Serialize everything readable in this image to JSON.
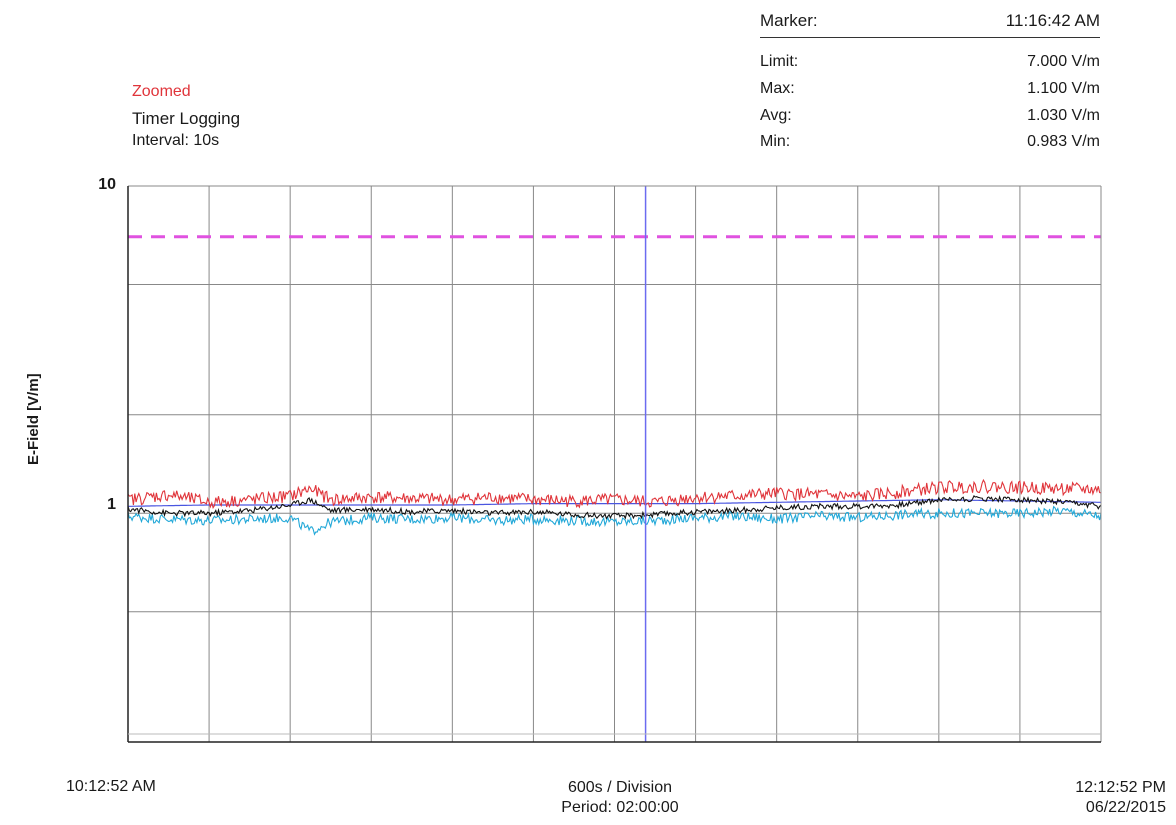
{
  "header": {
    "zoom_label": "Zoomed",
    "mode_label": "Timer Logging",
    "interval_label": "Interval: 10s"
  },
  "stats": {
    "marker_label": "Marker:",
    "marker_value": "11:16:42 AM",
    "rows": [
      {
        "label": "Limit:",
        "value": "7.000 V/m"
      },
      {
        "label": "Max:",
        "value": "1.100 V/m"
      },
      {
        "label": "Avg:",
        "value": "1.030 V/m"
      },
      {
        "label": "Min:",
        "value": "0.983 V/m"
      }
    ]
  },
  "footer": {
    "start_time": "10:12:52 AM",
    "division": "600s / Division",
    "period": "Period: 02:00:00",
    "end_time": "12:12:52 PM",
    "end_date": "06/22/2015"
  },
  "colors": {
    "max": "#e0343a",
    "avg": "#111111",
    "min": "#22a8d8",
    "limit": "#e052e0",
    "marker": "#6b6bf0",
    "grid": "#888888",
    "axis": "#222222",
    "series_blue": "#4a56e0"
  },
  "chart_data": {
    "type": "line",
    "ylabel": "E-Field [V/m]",
    "yscale": "log",
    "ylim": [
      0.2,
      10
    ],
    "ytick_labels": [
      "10",
      "1"
    ],
    "x_start": "10:12:52 AM",
    "x_end": "12:12:52 PM",
    "x_divisions": 12,
    "seconds_per_division": 600,
    "grid": true,
    "limit_line": 7.0,
    "marker_time": "11:16:42 AM",
    "marker_seconds_from_start": 3830,
    "series": [
      {
        "role": "max",
        "x_seconds": [
          0,
          300,
          600,
          900,
          1200,
          1350,
          1500,
          1800,
          2100,
          2400,
          2700,
          3000,
          3300,
          3600,
          3900,
          4200,
          4500,
          4800,
          5100,
          5400,
          5700,
          6000,
          6300,
          6600,
          6900,
          7200
        ],
        "values": [
          1.1,
          1.14,
          1.08,
          1.1,
          1.13,
          1.19,
          1.1,
          1.12,
          1.11,
          1.1,
          1.12,
          1.1,
          1.09,
          1.1,
          1.08,
          1.12,
          1.13,
          1.15,
          1.14,
          1.12,
          1.16,
          1.2,
          1.21,
          1.2,
          1.19,
          1.18
        ]
      },
      {
        "role": "avg",
        "x_seconds": [
          0,
          300,
          600,
          900,
          1200,
          1350,
          1500,
          1800,
          2100,
          2400,
          2700,
          3000,
          3300,
          3600,
          3900,
          4200,
          4500,
          4800,
          5100,
          5400,
          5700,
          6000,
          6300,
          6600,
          6900,
          7200
        ],
        "values": [
          1.03,
          1.0,
          1.0,
          1.02,
          1.06,
          1.1,
          1.02,
          1.03,
          1.01,
          1.02,
          1.0,
          1.01,
          0.99,
          0.98,
          0.99,
          1.01,
          1.02,
          1.04,
          1.05,
          1.05,
          1.06,
          1.1,
          1.11,
          1.1,
          1.08,
          1.05
        ]
      },
      {
        "role": "min",
        "x_seconds": [
          0,
          300,
          600,
          900,
          1200,
          1350,
          1500,
          1800,
          2100,
          2400,
          2700,
          3000,
          3300,
          3600,
          3900,
          4200,
          4500,
          4800,
          5100,
          5400,
          5700,
          6000,
          6300,
          6600,
          6900,
          7200
        ],
        "values": [
          0.98,
          0.96,
          0.95,
          0.96,
          0.97,
          0.88,
          0.94,
          0.97,
          0.96,
          0.97,
          0.95,
          0.96,
          0.95,
          0.94,
          0.95,
          0.97,
          0.98,
          0.96,
          0.98,
          0.97,
          0.99,
          1.0,
          1.0,
          1.0,
          1.02,
          0.98
        ]
      },
      {
        "role": "avg-blue",
        "x_seconds": [
          0,
          600,
          1200,
          1800,
          2400,
          3000,
          3600,
          4200,
          4800,
          5400,
          6000,
          6600,
          7200
        ],
        "values": [
          1.05,
          1.06,
          1.06,
          1.06,
          1.06,
          1.07,
          1.07,
          1.07,
          1.08,
          1.09,
          1.1,
          1.09,
          1.08
        ]
      }
    ]
  }
}
